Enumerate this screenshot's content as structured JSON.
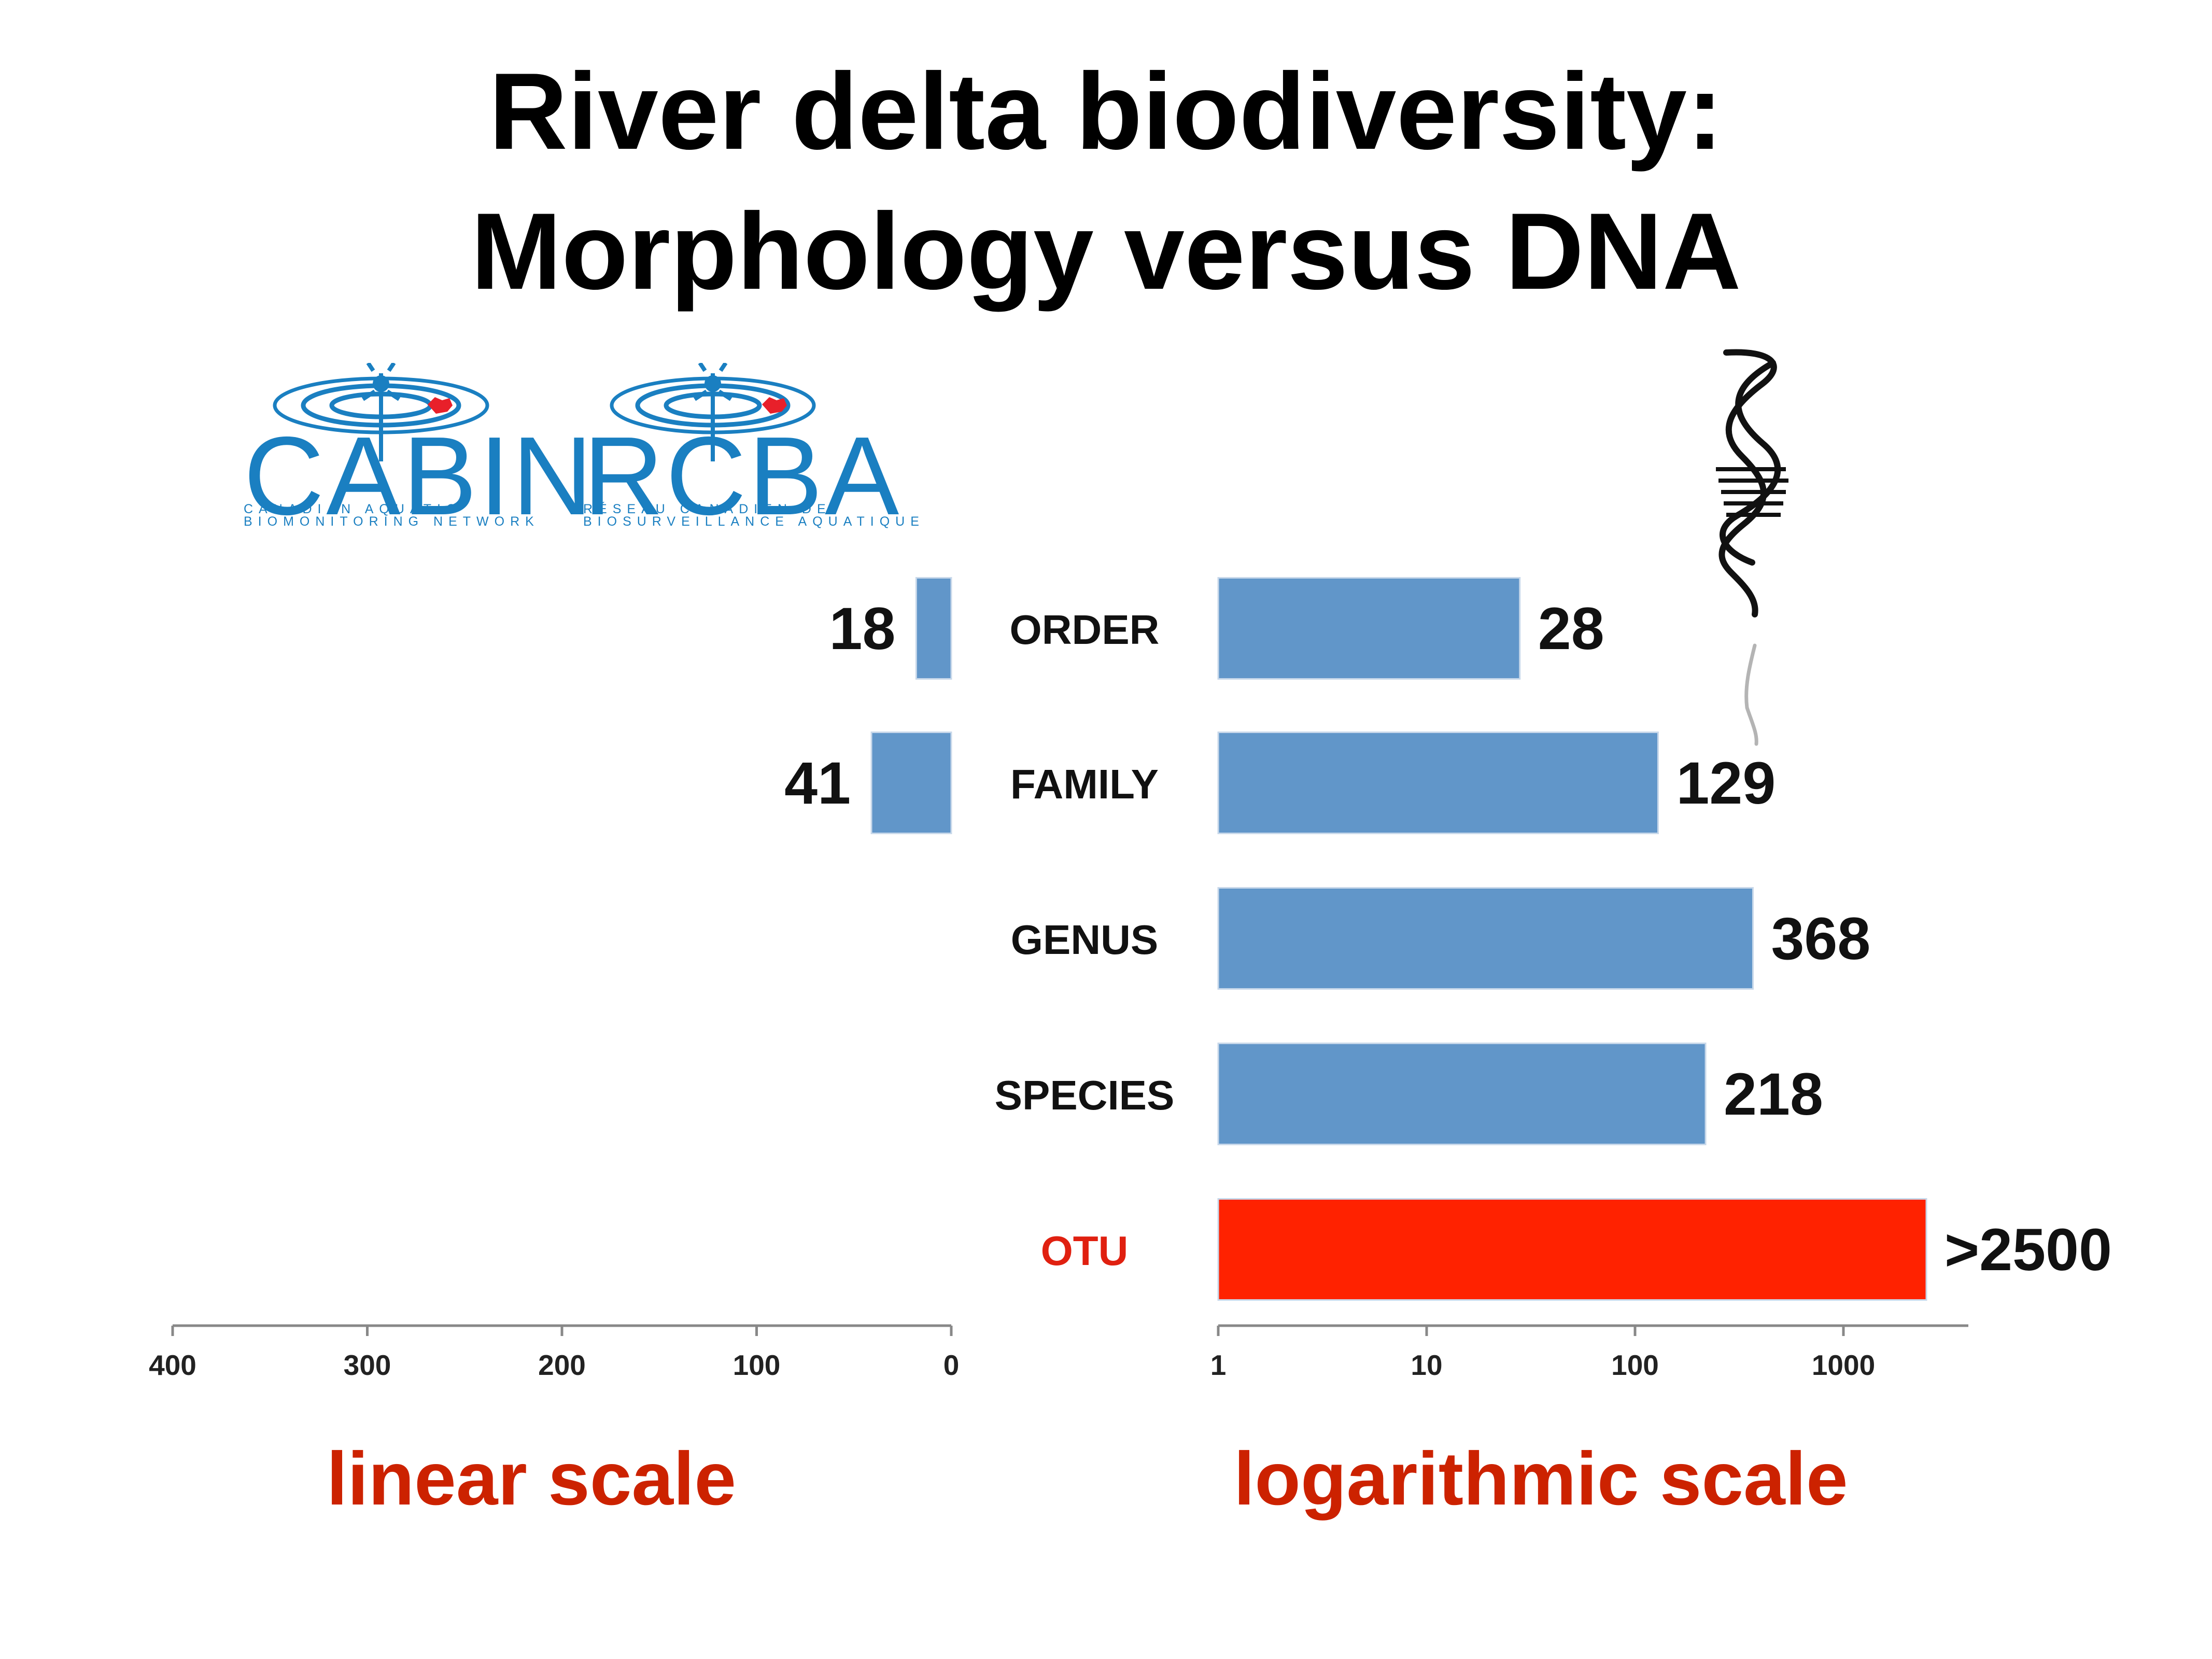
{
  "title": {
    "line1": "River delta biodiversity:",
    "line2": "Morphology versus DNA"
  },
  "logos": {
    "cabin": {
      "name": "CABIN",
      "subtitle_line1": "CANADIAN AQUATIC",
      "subtitle_line2": "BIOMONITORING NETWORK"
    },
    "rcba": {
      "name": "RCBA",
      "subtitle_line1": "RÉSEAU CANADIEN DE",
      "subtitle_line2": "BIOSURVEILLANCE AQUATIQUE"
    },
    "dna_icon": "dna-helix-icon"
  },
  "colors": {
    "bar_blue": "#6196c9",
    "bar_red": "#ff2200",
    "otu_label": "#e02010",
    "scale_label": "#cc2200",
    "logo_blue": "#1a7fc1",
    "logo_red": "#e8202a"
  },
  "scale_labels": {
    "linear": "linear scale",
    "logarithmic": "logarithmic scale"
  },
  "chart_data": [
    {
      "type": "bar",
      "orientation": "horizontal",
      "direction": "right-to-left",
      "scale": "linear",
      "categories": [
        "ORDER",
        "FAMILY",
        "GENUS",
        "SPECIES",
        "OTU"
      ],
      "values": [
        18,
        41,
        null,
        null,
        null
      ],
      "value_labels": [
        "18",
        "41",
        "",
        "",
        ""
      ],
      "xlim": [
        0,
        400
      ],
      "ticks": [
        400,
        300,
        200,
        100,
        0
      ],
      "tick_labels": [
        "400",
        "300",
        "200",
        "100",
        "0"
      ],
      "color": "#6196c9",
      "grid": false
    },
    {
      "type": "bar",
      "orientation": "horizontal",
      "direction": "left-to-right",
      "scale": "log",
      "categories": [
        "ORDER",
        "FAMILY",
        "GENUS",
        "SPECIES",
        "OTU"
      ],
      "values": [
        28,
        129,
        368,
        218,
        2500
      ],
      "value_labels": [
        "28",
        "129",
        "368",
        "218",
        ">2500"
      ],
      "colors": [
        "#6196c9",
        "#6196c9",
        "#6196c9",
        "#6196c9",
        "#ff2200"
      ],
      "xlim": [
        1,
        5000
      ],
      "ticks": [
        1,
        10,
        100,
        1000
      ],
      "tick_labels": [
        "1",
        "10",
        "100",
        "1000"
      ],
      "grid": false
    }
  ]
}
